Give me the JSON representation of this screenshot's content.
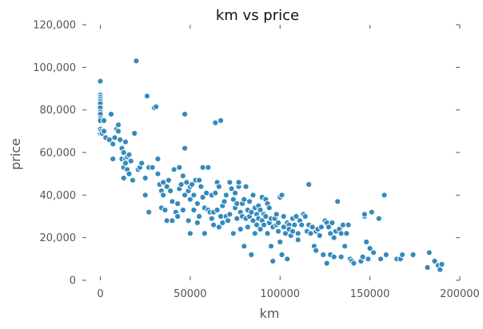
{
  "chart_data": {
    "type": "scatter",
    "title": "km vs price",
    "xlabel": "km",
    "ylabel": "price",
    "xlim": [
      -10000,
      200000
    ],
    "ylim": [
      0,
      120000
    ],
    "x_ticks": [
      0,
      50000,
      100000,
      150000,
      200000
    ],
    "x_tick_labels": [
      "0",
      "50000",
      "100000",
      "150000",
      "200000"
    ],
    "y_ticks": [
      0,
      20000,
      40000,
      60000,
      80000,
      100000,
      120000
    ],
    "y_tick_labels": [
      "0",
      "20,000",
      "40,000",
      "60,000",
      "80,000",
      "100,000",
      "120,000"
    ],
    "grid": false,
    "point_color": "#348abd",
    "series": [
      {
        "points": [
          [
            0,
            93500
          ],
          [
            0,
            87000
          ],
          [
            0,
            86000
          ],
          [
            0,
            85000
          ],
          [
            0,
            84000
          ],
          [
            0,
            83000
          ],
          [
            0,
            81000
          ],
          [
            0,
            79000
          ],
          [
            0,
            78000
          ],
          [
            0,
            76000
          ],
          [
            0,
            75000
          ],
          [
            0,
            71000
          ],
          [
            0,
            69000
          ],
          [
            500,
            70000
          ],
          [
            1000,
            69000
          ],
          [
            2000,
            75000
          ],
          [
            2000,
            70000
          ],
          [
            3000,
            67000
          ],
          [
            5000,
            66000
          ],
          [
            6000,
            78000
          ],
          [
            7000,
            64000
          ],
          [
            7000,
            57000
          ],
          [
            8000,
            67000
          ],
          [
            9000,
            71000
          ],
          [
            10000,
            70000
          ],
          [
            10000,
            73000
          ],
          [
            11000,
            66000
          ],
          [
            12000,
            62000
          ],
          [
            12000,
            57000
          ],
          [
            13000,
            60000
          ],
          [
            13000,
            53000
          ],
          [
            13000,
            48000
          ],
          [
            14000,
            65000
          ],
          [
            14000,
            57000
          ],
          [
            14000,
            55000
          ],
          [
            15000,
            58000
          ],
          [
            15000,
            52000
          ],
          [
            16000,
            50000
          ],
          [
            16000,
            59000
          ],
          [
            17000,
            56000
          ],
          [
            18000,
            47000
          ],
          [
            19000,
            69000
          ],
          [
            20000,
            103000
          ],
          [
            21000,
            52000
          ],
          [
            22000,
            53000
          ],
          [
            23000,
            55000
          ],
          [
            25000,
            48000
          ],
          [
            25000,
            40000
          ],
          [
            26000,
            86500
          ],
          [
            27000,
            53000
          ],
          [
            27000,
            32000
          ],
          [
            29000,
            53000
          ],
          [
            30000,
            81000
          ],
          [
            31000,
            81500
          ],
          [
            32000,
            50000
          ],
          [
            32000,
            57000
          ],
          [
            33000,
            45000
          ],
          [
            34000,
            34000
          ],
          [
            34000,
            42000
          ],
          [
            35000,
            46000
          ],
          [
            35000,
            40000
          ],
          [
            36000,
            33000
          ],
          [
            37000,
            28000
          ],
          [
            37000,
            44000
          ],
          [
            38000,
            47000
          ],
          [
            39000,
            42000
          ],
          [
            40000,
            28000
          ],
          [
            40000,
            37000
          ],
          [
            41000,
            52000
          ],
          [
            42000,
            32000
          ],
          [
            43000,
            36000
          ],
          [
            43000,
            30000
          ],
          [
            44000,
            53000
          ],
          [
            44000,
            43000
          ],
          [
            45000,
            45000
          ],
          [
            46000,
            33000
          ],
          [
            46000,
            49000
          ],
          [
            47000,
            78000
          ],
          [
            47000,
            40000
          ],
          [
            47000,
            62000
          ],
          [
            48000,
            46000
          ],
          [
            49000,
            42000
          ],
          [
            49000,
            28000
          ],
          [
            50000,
            22000
          ],
          [
            50000,
            38000
          ],
          [
            50000,
            44000
          ],
          [
            51000,
            45000
          ],
          [
            52000,
            33000
          ],
          [
            52000,
            40000
          ],
          [
            53000,
            47000
          ],
          [
            54000,
            27000
          ],
          [
            54000,
            36000
          ],
          [
            55000,
            47000
          ],
          [
            55000,
            30000
          ],
          [
            56000,
            44000
          ],
          [
            57000,
            53000
          ],
          [
            57000,
            39000
          ],
          [
            58000,
            34000
          ],
          [
            58000,
            22000
          ],
          [
            59000,
            41000
          ],
          [
            60000,
            33000
          ],
          [
            60000,
            53000
          ],
          [
            61000,
            32000
          ],
          [
            62000,
            40000
          ],
          [
            62000,
            29000
          ],
          [
            63000,
            32000
          ],
          [
            63000,
            26000
          ],
          [
            64000,
            74000
          ],
          [
            64000,
            41000
          ],
          [
            65000,
            46000
          ],
          [
            65000,
            33000
          ],
          [
            66000,
            25000
          ],
          [
            66000,
            44000
          ],
          [
            67000,
            75000
          ],
          [
            67000,
            30000
          ],
          [
            68000,
            35000
          ],
          [
            68000,
            27000
          ],
          [
            69000,
            37000
          ],
          [
            70000,
            30000
          ],
          [
            70000,
            40000
          ],
          [
            71000,
            28000
          ],
          [
            72000,
            46000
          ],
          [
            72000,
            31000
          ],
          [
            73000,
            43000
          ],
          [
            74000,
            38000
          ],
          [
            74000,
            22000
          ],
          [
            75000,
            34000
          ],
          [
            75000,
            41000
          ],
          [
            76000,
            29000
          ],
          [
            76000,
            36000
          ],
          [
            77000,
            44000
          ],
          [
            77000,
            46000
          ],
          [
            78000,
            32000
          ],
          [
            78000,
            24000
          ],
          [
            79000,
            36000
          ],
          [
            79000,
            30000
          ],
          [
            80000,
            16000
          ],
          [
            80000,
            38000
          ],
          [
            81000,
            29000
          ],
          [
            81000,
            44000
          ],
          [
            82000,
            33000
          ],
          [
            82000,
            25000
          ],
          [
            83000,
            30000
          ],
          [
            83000,
            37000
          ],
          [
            84000,
            32000
          ],
          [
            84000,
            12000
          ],
          [
            85000,
            28000
          ],
          [
            85000,
            40000
          ],
          [
            86000,
            34000
          ],
          [
            86000,
            22000
          ],
          [
            87000,
            31000
          ],
          [
            87000,
            26000
          ],
          [
            88000,
            29000
          ],
          [
            88000,
            35000
          ],
          [
            89000,
            33000
          ],
          [
            89000,
            24000
          ],
          [
            90000,
            39000
          ],
          [
            90000,
            28000
          ],
          [
            91000,
            31000
          ],
          [
            91000,
            26000
          ],
          [
            92000,
            38000
          ],
          [
            92000,
            30000
          ],
          [
            93000,
            36000
          ],
          [
            93000,
            22000
          ],
          [
            94000,
            27000
          ],
          [
            94000,
            34000
          ],
          [
            95000,
            16000
          ],
          [
            95000,
            29000
          ],
          [
            96000,
            25000
          ],
          [
            96000,
            9000
          ],
          [
            97000,
            29000
          ],
          [
            98000,
            26000
          ],
          [
            98000,
            31000
          ],
          [
            99000,
            23000
          ],
          [
            99000,
            27000
          ],
          [
            100000,
            18000
          ],
          [
            100000,
            39000
          ],
          [
            101000,
            12000
          ],
          [
            101000,
            40000
          ],
          [
            102000,
            25000
          ],
          [
            102000,
            30000
          ],
          [
            103000,
            22000
          ],
          [
            104000,
            27000
          ],
          [
            104000,
            10000
          ],
          [
            105000,
            26000
          ],
          [
            105000,
            24000
          ],
          [
            106000,
            21000
          ],
          [
            107000,
            29000
          ],
          [
            107000,
            23000
          ],
          [
            108000,
            26000
          ],
          [
            109000,
            30000
          ],
          [
            110000,
            19000
          ],
          [
            110000,
            22000
          ],
          [
            111000,
            28000
          ],
          [
            112000,
            26000
          ],
          [
            113000,
            31000
          ],
          [
            114000,
            30000
          ],
          [
            115000,
            23000
          ],
          [
            116000,
            45000
          ],
          [
            116000,
            26000
          ],
          [
            117000,
            22000
          ],
          [
            118000,
            25000
          ],
          [
            119000,
            16000
          ],
          [
            120000,
            23000
          ],
          [
            120000,
            14000
          ],
          [
            121000,
            24000
          ],
          [
            122000,
            21000
          ],
          [
            123000,
            25000
          ],
          [
            124000,
            12000
          ],
          [
            125000,
            28000
          ],
          [
            126000,
            8000
          ],
          [
            126000,
            27000
          ],
          [
            127000,
            25000
          ],
          [
            128000,
            12000
          ],
          [
            128000,
            22000
          ],
          [
            129000,
            27000
          ],
          [
            130000,
            11000
          ],
          [
            130000,
            20000
          ],
          [
            131000,
            23000
          ],
          [
            132000,
            37000
          ],
          [
            133000,
            24000
          ],
          [
            134000,
            11000
          ],
          [
            134000,
            22000
          ],
          [
            135000,
            26000
          ],
          [
            136000,
            16000
          ],
          [
            137000,
            22000
          ],
          [
            138000,
            26000
          ],
          [
            139000,
            10000
          ],
          [
            140000,
            9000
          ],
          [
            141000,
            8000
          ],
          [
            145000,
            9000
          ],
          [
            146000,
            11000
          ],
          [
            147000,
            30000
          ],
          [
            147000,
            31000
          ],
          [
            148000,
            18000
          ],
          [
            149000,
            10000
          ],
          [
            150000,
            15000
          ],
          [
            151000,
            32000
          ],
          [
            152000,
            13000
          ],
          [
            155000,
            29000
          ],
          [
            156000,
            10000
          ],
          [
            158000,
            40000
          ],
          [
            159000,
            12000
          ],
          [
            165000,
            10000
          ],
          [
            167000,
            10000
          ],
          [
            168000,
            12000
          ],
          [
            174000,
            12000
          ],
          [
            182000,
            6000
          ],
          [
            183000,
            13000
          ],
          [
            186000,
            9000
          ],
          [
            188000,
            7000
          ],
          [
            189000,
            5000
          ],
          [
            190000,
            7500
          ]
        ]
      }
    ]
  }
}
